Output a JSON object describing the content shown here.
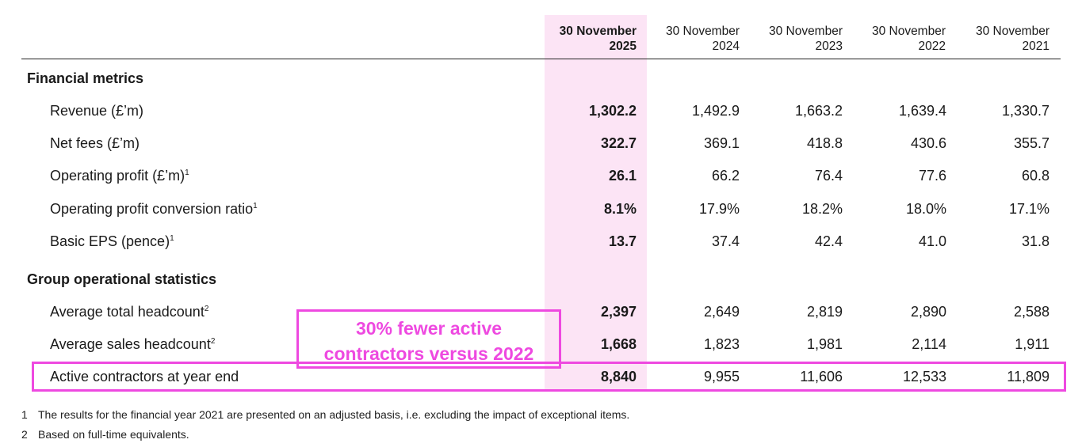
{
  "headers": [
    {
      "line1": "30 November",
      "line2": "2025"
    },
    {
      "line1": "30 November",
      "line2": "2024"
    },
    {
      "line1": "30 November",
      "line2": "2023"
    },
    {
      "line1": "30 November",
      "line2": "2022"
    },
    {
      "line1": "30 November",
      "line2": "2021"
    }
  ],
  "sections": {
    "financial": "Financial metrics",
    "operational": "Group operational statistics"
  },
  "rows": [
    {
      "label": "Revenue (£’m)",
      "sup": "",
      "values": [
        "1,302.2",
        "1,492.9",
        "1,663.2",
        "1,639.4",
        "1,330.7"
      ]
    },
    {
      "label": "Net fees (£’m)",
      "sup": "",
      "values": [
        "322.7",
        "369.1",
        "418.8",
        "430.6",
        "355.7"
      ]
    },
    {
      "label": "Operating profit (£’m)",
      "sup": "1",
      "values": [
        "26.1",
        "66.2",
        "76.4",
        "77.6",
        "60.8"
      ]
    },
    {
      "label": "Operating profit conversion ratio",
      "sup": "1",
      "values": [
        "8.1%",
        "17.9%",
        "18.2%",
        "18.0%",
        "17.1%"
      ]
    },
    {
      "label": "Basic EPS (pence)",
      "sup": "1",
      "values": [
        "13.7",
        "37.4",
        "42.4",
        "41.0",
        "31.8"
      ]
    },
    {
      "label": "Average total headcount",
      "sup": "2",
      "values": [
        "2,397",
        "2,649",
        "2,819",
        "2,890",
        "2,588"
      ]
    },
    {
      "label": "Average sales headcount",
      "sup": "2",
      "values": [
        "1,668",
        "1,823",
        "1,981",
        "2,114",
        "1,911"
      ]
    },
    {
      "label": "Active contractors at year end",
      "sup": "",
      "values": [
        "8,840",
        "9,955",
        "11,606",
        "12,533",
        "11,809"
      ]
    }
  ],
  "callout": {
    "line1": "30% fewer active",
    "line2": "contractors versus 2022"
  },
  "footnotes": [
    {
      "num": "1",
      "text": "The results for the financial year 2021 are presented on an adjusted basis, i.e. excluding the impact of exceptional items."
    },
    {
      "num": "2",
      "text": "Based on full-time equivalents."
    }
  ],
  "colors": {
    "highlight_column": "#fce4f5",
    "annotation": "#ee49e0"
  }
}
